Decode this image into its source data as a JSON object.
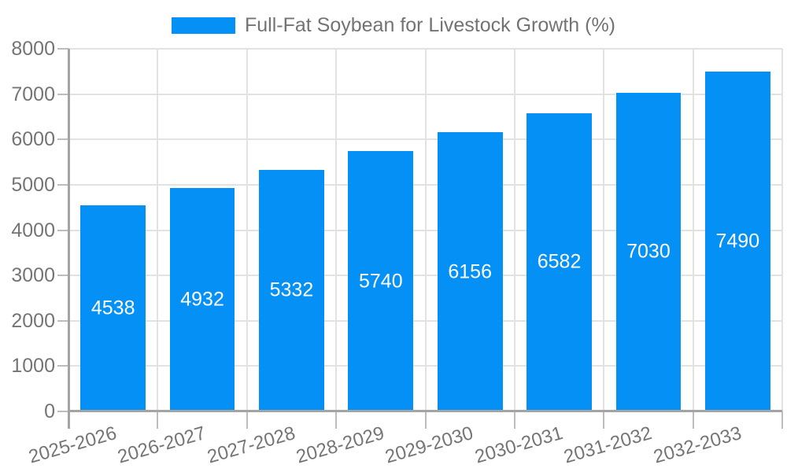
{
  "chart_data": {
    "type": "bar",
    "title": "",
    "series_name": "Full-Fat Soybean for Livestock Growth (%)",
    "categories": [
      "2025-2026",
      "2026-2027",
      "2027-2028",
      "2028-2029",
      "2029-2030",
      "2030-2031",
      "2031-2032",
      "2032-2033"
    ],
    "values": [
      4538,
      4932,
      5332,
      5740,
      6156,
      6582,
      7030,
      7490
    ],
    "xlabel": "",
    "ylabel": "",
    "ylim": [
      0,
      8000
    ],
    "y_ticks": [
      0,
      1000,
      2000,
      3000,
      4000,
      5000,
      6000,
      7000,
      8000
    ],
    "grid": true,
    "legend_position": "top",
    "colors": {
      "bar": "#0590f5",
      "bar_value_text": "#ffffff",
      "axis_text": "#757575",
      "legend_text": "#737373",
      "gridline": "#e2e2e2",
      "axis_line": "#a4a4a4",
      "tick": "#bdbdbd"
    }
  }
}
